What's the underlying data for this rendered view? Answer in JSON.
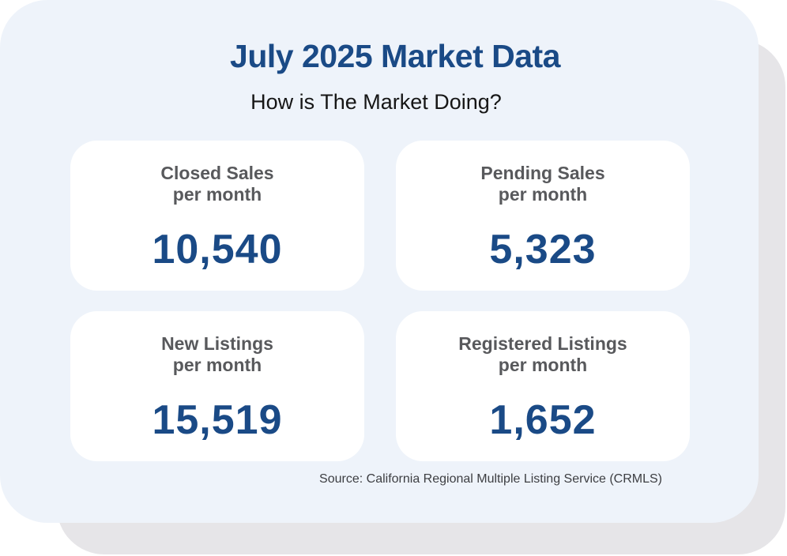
{
  "title": "July 2025 Market Data",
  "subtitle": "How is The Market Doing?",
  "stats": [
    {
      "label_line1": "Closed Sales",
      "label_line2": "per month",
      "value": "10,540"
    },
    {
      "label_line1": "Pending Sales",
      "label_line2": "per month",
      "value": "5,323"
    },
    {
      "label_line1": "New Listings",
      "label_line2": "per month",
      "value": "15,519"
    },
    {
      "label_line1": "Registered Listings",
      "label_line2": "per month",
      "value": "1,652"
    }
  ],
  "source": "Source: California Regional Multiple Listing Service (CRMLS)",
  "colors": {
    "accent": "#1a4a86",
    "panel_background": "#eef3fa",
    "shadow": "#e6e5e8",
    "label_text": "#58595c"
  }
}
